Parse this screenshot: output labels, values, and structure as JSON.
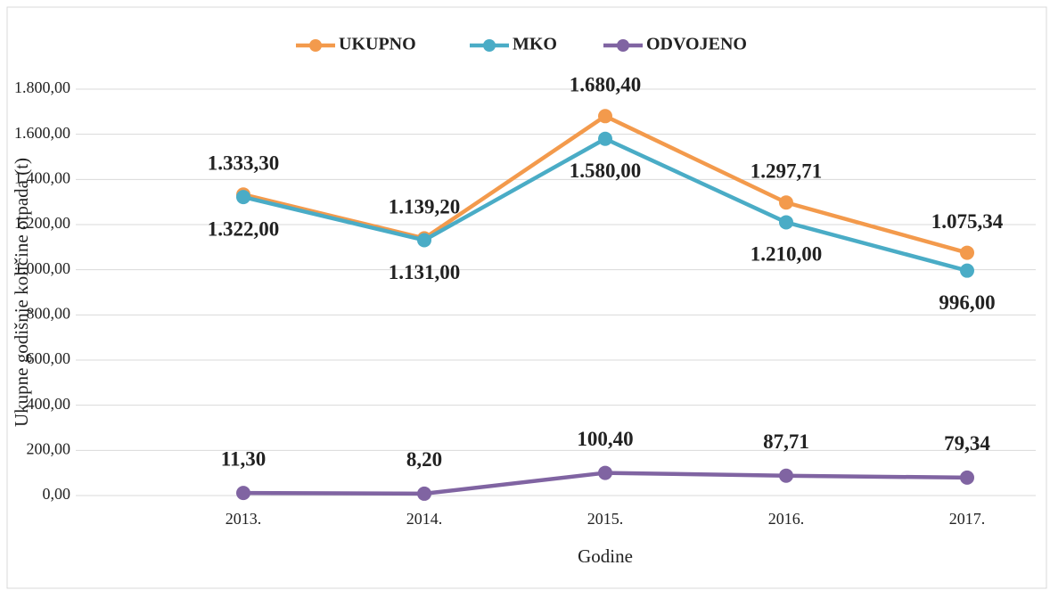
{
  "chart_data": {
    "type": "line",
    "categories": [
      "2013.",
      "2014.",
      "2015.",
      "2016.",
      "2017."
    ],
    "series": [
      {
        "name": "UKUPNO",
        "color": "#f39a4c",
        "values": [
          1333.3,
          1139.2,
          1680.4,
          1297.71,
          1075.34
        ],
        "value_labels": [
          "1.333,30",
          "1.139,20",
          "1.680,40",
          "1.297,71",
          "1.075,34"
        ]
      },
      {
        "name": "MKO",
        "color": "#4aacc6",
        "values": [
          1322,
          1131,
          1580,
          1210,
          996
        ],
        "value_labels": [
          "1.322,00",
          "1.131,00",
          "1.580,00",
          "1.210,00",
          "996,00"
        ]
      },
      {
        "name": "ODVOJENO",
        "color": "#8064a2",
        "values": [
          11.3,
          8.2,
          100.4,
          87.71,
          79.34
        ],
        "value_labels": [
          "11,30",
          "8,20",
          "100,40",
          "87,71",
          "79,34"
        ]
      }
    ],
    "xlabel": "Godine",
    "ylabel": "Ukupne godišnje količine otpada (t)",
    "ylim": [
      0,
      1800
    ],
    "yticks": [
      {
        "value": 0,
        "label": "0,00"
      },
      {
        "value": 200,
        "label": "200,00"
      },
      {
        "value": 400,
        "label": "400,00"
      },
      {
        "value": 600,
        "label": "600,00"
      },
      {
        "value": 800,
        "label": "800,00"
      },
      {
        "value": 1000,
        "label": "1.000,00"
      },
      {
        "value": 1200,
        "label": "1.200,00"
      },
      {
        "value": 1400,
        "label": "1.400,00"
      },
      {
        "value": 1600,
        "label": "1.600,00"
      },
      {
        "value": 1800,
        "label": "1.800,00"
      }
    ],
    "grid": true,
    "legend": "top"
  }
}
